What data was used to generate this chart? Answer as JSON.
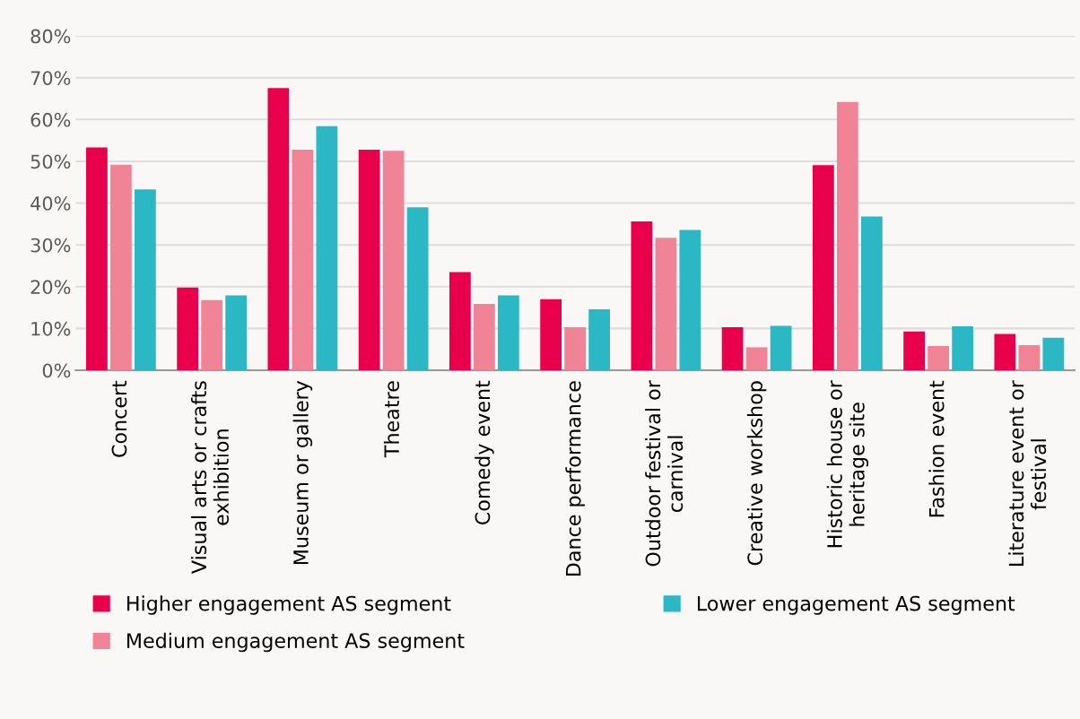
{
  "chart_data": {
    "type": "bar",
    "categories": [
      "Concert",
      "Visual arts or crafts\nexhibition",
      "Museum or gallery",
      "Theatre",
      "Comedy event",
      "Dance performance",
      "Outdoor festival or\ncarnival",
      "Creative workshop",
      "Historic house or\nheritage site",
      "Fashion event",
      "Literature event or\nfestival"
    ],
    "series": [
      {
        "name": "Higher engagement AS segment",
        "color": "#e8004c",
        "values": [
          53.3,
          19.8,
          67.5,
          52.8,
          23.5,
          17.0,
          35.6,
          10.3,
          49.1,
          9.3,
          8.7
        ]
      },
      {
        "name": "Medium engagement AS segment",
        "color": "#f08496",
        "values": [
          49.2,
          16.8,
          52.8,
          52.5,
          15.9,
          10.3,
          31.7,
          5.5,
          64.2,
          5.8,
          6.0
        ]
      },
      {
        "name": "Lower engagement AS segment",
        "color": "#2bb7c4",
        "values": [
          43.3,
          17.9,
          58.4,
          39.0,
          17.9,
          14.6,
          33.6,
          10.6,
          36.8,
          10.5,
          7.8
        ]
      }
    ],
    "ylim": [
      0,
      80
    ],
    "yticks": [
      {
        "value": 0,
        "label": "0%"
      },
      {
        "value": 10,
        "label": "10%"
      },
      {
        "value": 20,
        "label": "20%"
      },
      {
        "value": 30,
        "label": "30%"
      },
      {
        "value": 40,
        "label": "40%"
      },
      {
        "value": 50,
        "label": "50%"
      },
      {
        "value": 60,
        "label": "60%"
      },
      {
        "value": 70,
        "label": "70%"
      },
      {
        "value": 80,
        "label": "80%"
      }
    ],
    "grid": "y",
    "legend": "bottom"
  }
}
